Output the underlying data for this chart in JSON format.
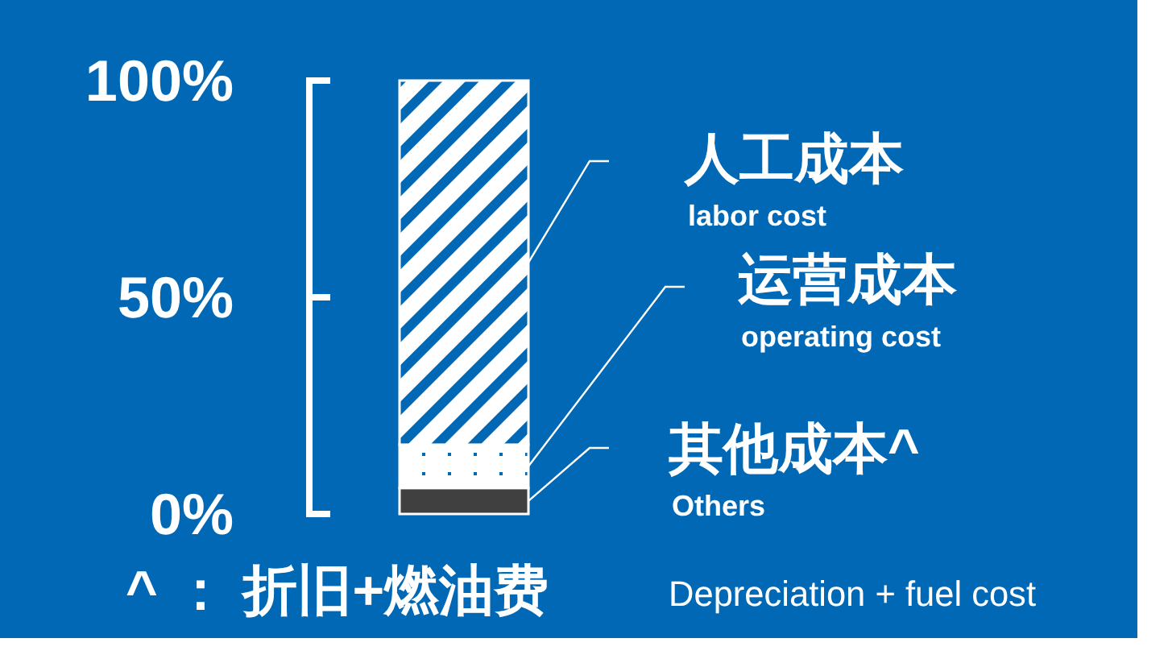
{
  "chart_data": {
    "type": "bar",
    "stacked": true,
    "categories": [
      null
    ],
    "series": [
      {
        "name": "其他成本^\nOthers",
        "color": "#404040",
        "values": [
          6
        ]
      },
      {
        "name": "运营成本\noperating cost",
        "color": "#ffffff",
        "values": [
          10
        ]
      },
      {
        "name": "人工成本\nlabor cost",
        "color": "#ffffff",
        "values": [
          84
        ]
      }
    ],
    "ylim": [
      0,
      100
    ],
    "yticks": [
      {
        "value": 0,
        "label": "0%"
      },
      {
        "value": 50,
        "label": "50%"
      },
      {
        "value": 100,
        "label": "100%"
      }
    ],
    "annotations": [
      "^ ： 折旧+燃油费",
      "Depreciation + fuel cost"
    ]
  }
}
